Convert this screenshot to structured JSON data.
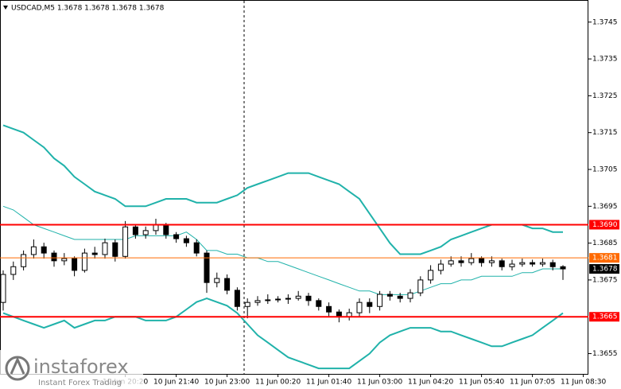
{
  "chart_data": {
    "type": "candlestick",
    "title": "USDCAD,M5  1.3678 1.3678 1.3678 1.3678",
    "logo_text": "instaforex",
    "logo_subtext": "Instant Forex Trading",
    "categories": [
      null,
      null,
      null,
      null,
      null,
      null,
      null,
      null,
      null,
      null,
      null,
      null,
      "10 Jun 20:20",
      null,
      null,
      null,
      null,
      "10 Jun 21:40",
      null,
      null,
      null,
      null,
      "10 Jun 23:00",
      null,
      null,
      null,
      null,
      "11 Jun 00:20",
      null,
      null,
      null,
      null,
      "11 Jun 01:40",
      null,
      null,
      null,
      null,
      "11 Jun 03:00",
      null,
      null,
      null,
      null,
      "11 Jun 04:20",
      null,
      null,
      null,
      null,
      "11 Jun 05:40",
      null,
      null,
      null,
      null,
      "11 Jun 07:05",
      null,
      null,
      null,
      null,
      "11 Jun 08:30"
    ],
    "open": [
      1.36689,
      1.36765,
      1.36786,
      1.36819,
      1.3684,
      1.36823,
      1.36802,
      1.36808,
      1.36776,
      1.36823,
      1.36819,
      1.36851,
      1.36814,
      1.36894,
      1.36873,
      1.36884,
      1.36901,
      1.36873,
      1.36862,
      1.36851,
      1.36823,
      1.36743,
      1.36754,
      1.36722,
      1.36678,
      1.36689,
      1.36694,
      1.36696,
      1.36698,
      1.367,
      1.36706,
      1.36694,
      1.36678,
      1.36663,
      1.3665,
      1.36661,
      1.36689,
      1.36678,
      1.36711,
      1.36706,
      1.367,
      1.36715,
      1.3675,
      1.36776,
      1.36793,
      1.36802,
      1.36797,
      1.36808,
      1.36797,
      1.36802,
      1.36786,
      1.36793,
      1.36797,
      1.36793,
      1.36797,
      1.36786,
      null,
      null
    ],
    "high": [
      1.36776,
      1.368,
      1.3683,
      1.3686,
      1.36851,
      1.3683,
      1.36823,
      1.36814,
      1.36835,
      1.3684,
      1.36862,
      1.3686,
      1.3691,
      1.369,
      1.36895,
      1.36916,
      1.36905,
      1.3688,
      1.3687,
      1.3686,
      1.3683,
      1.3677,
      1.36765,
      1.3673,
      1.367,
      1.36706,
      1.36711,
      1.36706,
      1.36711,
      1.3672,
      1.36715,
      1.367,
      1.36689,
      1.3667,
      1.36672,
      1.367,
      1.367,
      1.3672,
      1.3672,
      1.36715,
      1.36725,
      1.3676,
      1.3679,
      1.36805,
      1.36814,
      1.36814,
      1.36823,
      1.36814,
      1.36814,
      1.36808,
      1.36805,
      1.36808,
      1.36805,
      1.36808,
      1.36805,
      1.3679,
      null,
      null
    ],
    "low": [
      1.36667,
      1.3675,
      1.36776,
      1.36808,
      1.36808,
      1.36786,
      1.3679,
      1.3676,
      1.3677,
      1.36808,
      1.36808,
      1.368,
      1.36808,
      1.36862,
      1.36862,
      1.36873,
      1.36862,
      1.36851,
      1.3684,
      1.36814,
      1.36715,
      1.3673,
      1.36711,
      1.36667,
      1.36646,
      1.3668,
      1.36685,
      1.36689,
      1.36685,
      1.36694,
      1.3668,
      1.36667,
      1.3665,
      1.36635,
      1.3664,
      1.3665,
      1.3666,
      1.36667,
      1.36694,
      1.36689,
      1.36689,
      1.36706,
      1.3674,
      1.36765,
      1.36786,
      1.36786,
      1.3679,
      1.36786,
      1.36786,
      1.36776,
      1.36776,
      1.36786,
      1.36786,
      1.36786,
      1.36776,
      1.3675,
      null,
      null
    ],
    "close": [
      1.36765,
      1.36786,
      1.36819,
      1.3684,
      1.36823,
      1.36802,
      1.36808,
      1.36776,
      1.36823,
      1.36819,
      1.36851,
      1.36814,
      1.36894,
      1.36873,
      1.36884,
      1.36901,
      1.36873,
      1.36862,
      1.36851,
      1.36823,
      1.36743,
      1.36754,
      1.36722,
      1.36678,
      1.36689,
      1.36694,
      1.36696,
      1.36698,
      1.367,
      1.36706,
      1.36694,
      1.36678,
      1.36663,
      1.3665,
      1.36661,
      1.36689,
      1.36678,
      1.36711,
      1.36706,
      1.367,
      1.36715,
      1.3675,
      1.36776,
      1.36793,
      1.36802,
      1.36797,
      1.36808,
      1.36797,
      1.36802,
      1.36786,
      1.36793,
      1.36797,
      1.36793,
      1.36797,
      1.36786,
      1.3678,
      null,
      null
    ],
    "up_color": "#ffffff",
    "down_color": "#000000",
    "series": [
      {
        "color": "#20b2aa",
        "width": 2,
        "values": [
          1.3717,
          1.3716,
          1.3715,
          1.3713,
          1.3711,
          1.3708,
          1.3706,
          1.3703,
          1.3701,
          1.3699,
          1.3698,
          1.3697,
          1.3695,
          1.3695,
          1.3695,
          1.3696,
          1.3697,
          1.3697,
          1.3697,
          1.3696,
          1.3696,
          1.3696,
          1.3697,
          1.3698,
          1.37,
          1.3701,
          1.3702,
          1.3703,
          1.3704,
          1.3704,
          1.3704,
          1.3703,
          1.3702,
          1.3701,
          1.3699,
          1.3697,
          1.3693,
          1.3689,
          1.3685,
          1.3682,
          1.3682,
          1.3682,
          1.3683,
          1.3684,
          1.3686,
          1.3687,
          1.3688,
          1.3689,
          1.369,
          1.369,
          1.369,
          1.369,
          1.3689,
          1.3689,
          1.3688,
          1.3688,
          null,
          null
        ]
      },
      {
        "color": "#20b2aa",
        "width": 1,
        "values": [
          1.3695,
          1.3694,
          1.3692,
          1.369,
          1.3689,
          1.3688,
          1.3687,
          1.3686,
          1.3686,
          1.3686,
          1.3686,
          1.3686,
          1.3686,
          1.3687,
          1.3687,
          1.3687,
          1.3687,
          1.3687,
          1.3688,
          1.3686,
          1.3683,
          1.3683,
          1.3682,
          1.3682,
          1.3681,
          1.3681,
          1.368,
          1.368,
          1.3679,
          1.3678,
          1.3677,
          1.3676,
          1.3675,
          1.3674,
          1.3673,
          1.3672,
          1.3672,
          1.3671,
          1.3671,
          1.3671,
          1.3671,
          1.3672,
          1.3673,
          1.3674,
          1.3674,
          1.3675,
          1.3675,
          1.3676,
          1.3676,
          1.3676,
          1.3676,
          1.3677,
          1.3677,
          1.3678,
          1.3678,
          1.3678,
          null,
          null
        ]
      },
      {
        "color": "#20b2aa",
        "width": 2,
        "values": [
          1.3666,
          1.3665,
          1.3664,
          1.3663,
          1.3662,
          1.3663,
          1.3664,
          1.3662,
          1.3663,
          1.3664,
          1.3664,
          1.3665,
          1.3665,
          1.3665,
          1.3664,
          1.3664,
          1.3664,
          1.3665,
          1.3667,
          1.3669,
          1.367,
          1.3669,
          1.3668,
          1.3666,
          1.3663,
          1.366,
          1.3658,
          1.3656,
          1.3654,
          1.3653,
          1.3652,
          1.3651,
          1.3651,
          1.3651,
          1.3651,
          1.3653,
          1.3655,
          1.3658,
          1.366,
          1.3661,
          1.3662,
          1.3662,
          1.3662,
          1.3661,
          1.3661,
          1.366,
          1.3659,
          1.3658,
          1.3657,
          1.3657,
          1.3658,
          1.3659,
          1.366,
          1.3662,
          1.3664,
          1.3666,
          null,
          null
        ]
      }
    ],
    "levels": [
      {
        "value": 1.369,
        "label": "1.3690",
        "color": "#ff0000",
        "width": 2
      },
      {
        "value": 1.3681,
        "label": "1.3681",
        "color": "#ff6a00",
        "width": 1
      },
      {
        "value": 1.3665,
        "label": "1.3665",
        "color": "#ff0000",
        "width": 2
      }
    ],
    "last_price": 1.3678,
    "ylim": [
      1.36495,
      1.3751
    ],
    "yticks": [
      1.3745,
      1.3735,
      1.3725,
      1.3715,
      1.3705,
      1.3695,
      1.3685,
      1.3675,
      1.3655
    ]
  }
}
